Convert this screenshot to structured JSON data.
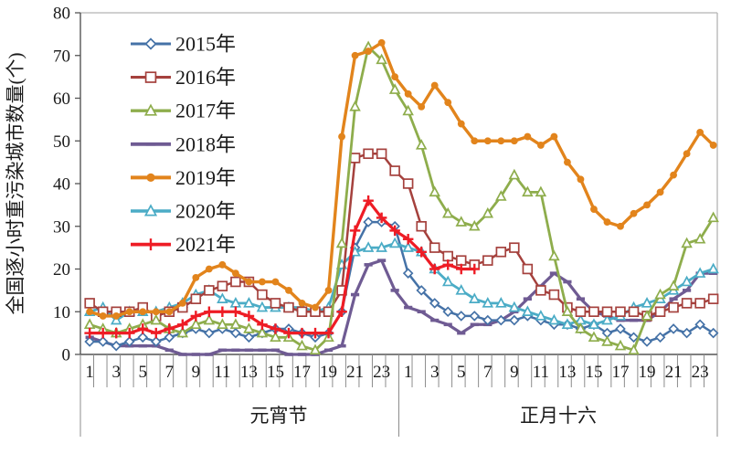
{
  "chart_data": {
    "type": "line",
    "title": "",
    "ylabel": "全国逐小时重污染城市数量(个)",
    "xlabel": "",
    "ylim": [
      0,
      80
    ],
    "ytick_step": 10,
    "ytick_labels": [
      "0",
      "10",
      "20",
      "30",
      "40",
      "50",
      "60",
      "70",
      "80"
    ],
    "grid": false,
    "legend_position": "inside-top-left",
    "x_hour_tick_labels": [
      "1",
      "3",
      "5",
      "7",
      "9",
      "11",
      "13",
      "15",
      "17",
      "19",
      "21",
      "23"
    ],
    "day_groups": [
      {
        "label": "元宵节",
        "hours": 24
      },
      {
        "label": "正月十六",
        "hours": 24
      }
    ],
    "series": [
      {
        "name": "2015年",
        "color": "#4572A7",
        "marker": "diamond",
        "line_width": 2.5,
        "values": [
          3,
          3,
          2,
          3,
          4,
          3,
          4,
          5,
          6,
          5,
          6,
          5,
          4,
          5,
          6,
          6,
          5,
          4,
          5,
          10,
          25,
          31,
          31,
          30,
          19,
          15,
          12,
          10,
          9,
          9,
          8,
          8,
          8,
          9,
          8,
          7,
          7,
          6,
          7,
          5,
          6,
          4,
          3,
          4,
          6,
          5,
          7,
          5
        ]
      },
      {
        "name": "2016年",
        "color": "#A5413D",
        "marker": "square",
        "line_width": 2.5,
        "values": [
          12,
          10,
          10,
          10,
          11,
          9,
          10,
          11,
          13,
          15,
          16,
          17,
          17,
          14,
          12,
          11,
          10,
          10,
          10,
          15,
          46,
          47,
          47,
          43,
          40,
          30,
          25,
          23,
          22,
          21,
          22,
          24,
          25,
          20,
          15,
          14,
          11,
          10,
          10,
          10,
          10,
          10,
          9,
          10,
          11,
          12,
          12,
          13
        ]
      },
      {
        "name": "2017年",
        "color": "#8EAD4C",
        "marker": "triangle",
        "line_width": 2.8,
        "values": [
          7,
          6,
          5,
          6,
          7,
          8,
          6,
          5,
          7,
          8,
          7,
          7,
          6,
          5,
          4,
          4,
          2,
          1,
          4,
          26,
          58,
          72,
          69,
          62,
          57,
          49,
          38,
          33,
          31,
          30,
          33,
          37,
          42,
          38,
          38,
          23,
          10,
          6,
          4,
          3,
          2,
          1,
          9,
          14,
          16,
          26,
          27,
          32
        ]
      },
      {
        "name": "2018年",
        "color": "#6F5B93",
        "marker": "dash",
        "line_width": 3.2,
        "values": [
          4,
          3,
          2,
          2,
          2,
          2,
          1,
          0,
          0,
          0,
          1,
          1,
          1,
          1,
          1,
          0,
          0,
          0,
          1,
          2,
          14,
          21,
          22,
          15,
          11,
          10,
          8,
          7,
          5,
          7,
          7,
          8,
          10,
          13,
          16,
          19,
          17,
          13,
          10,
          9,
          8,
          8,
          8,
          10,
          13,
          15,
          19,
          19
        ]
      },
      {
        "name": "2019年",
        "color": "#E2841C",
        "marker": "circle",
        "line_width": 3.4,
        "values": [
          10,
          9,
          9,
          10,
          10,
          10,
          10,
          12,
          18,
          20,
          21,
          19,
          17,
          17,
          17,
          15,
          12,
          11,
          15,
          51,
          70,
          71,
          73,
          65,
          61,
          58,
          63,
          59,
          54,
          50,
          50,
          50,
          50,
          51,
          49,
          51,
          45,
          41,
          34,
          31,
          30,
          33,
          35,
          38,
          42,
          47,
          52,
          49
        ]
      },
      {
        "name": "2020年",
        "color": "#4BACC6",
        "marker": "triangle",
        "line_width": 2.8,
        "values": [
          10,
          11,
          8,
          10,
          10,
          10,
          11,
          12,
          14,
          15,
          13,
          12,
          12,
          11,
          11,
          11,
          11,
          10,
          11,
          21,
          24,
          25,
          25,
          26,
          25,
          24,
          20,
          17,
          15,
          13,
          12,
          12,
          11,
          10,
          9,
          8,
          7,
          8,
          7,
          8,
          9,
          11,
          12,
          13,
          15,
          17,
          19,
          20
        ]
      },
      {
        "name": "2021年",
        "color": "#EE1C25",
        "marker": "plus",
        "line_width": 3.2,
        "values": [
          5,
          5,
          5,
          5,
          6,
          5,
          6,
          7,
          9,
          10,
          10,
          10,
          9,
          7,
          6,
          5,
          5,
          5,
          5,
          10,
          29,
          36,
          32,
          29,
          27,
          24,
          20,
          21,
          20,
          20,
          null,
          null,
          null,
          null,
          null,
          null,
          null,
          null,
          null,
          null,
          null,
          null,
          null,
          null,
          null,
          null,
          null,
          null
        ]
      }
    ],
    "colors": {
      "axis": "#555555",
      "frame": "#b3b3b3",
      "tick": "#8c8c8c",
      "text": "#1a1a1a"
    }
  }
}
